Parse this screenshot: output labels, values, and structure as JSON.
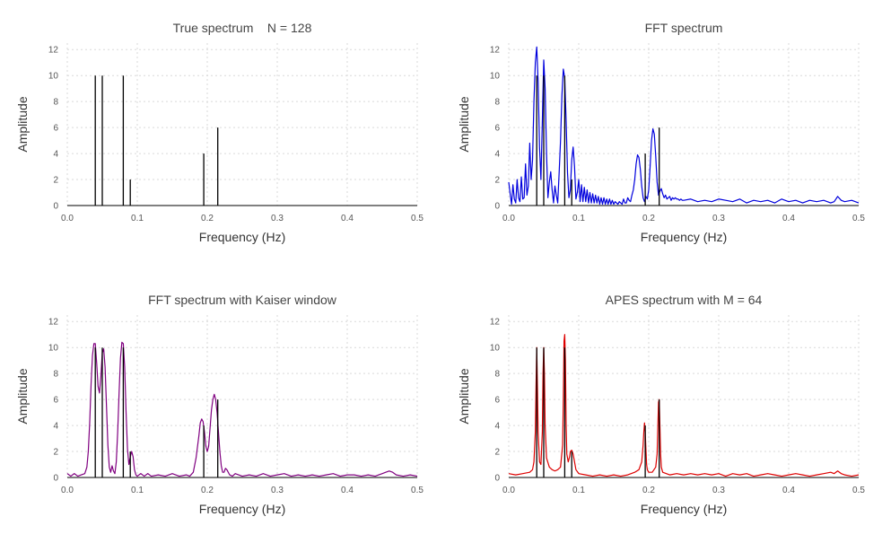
{
  "chart_data": [
    {
      "type": "line",
      "title": "True spectrum    N = 128",
      "xlabel": "Frequency (Hz)",
      "ylabel": "Amplitude",
      "xlim": [
        0,
        0.5
      ],
      "ylim": [
        0,
        12.5
      ],
      "xticks": [
        0.0,
        0.1,
        0.2,
        0.3,
        0.4,
        0.5
      ],
      "xtick_labels": [
        "0.0",
        "0.1",
        "0.2",
        "0.3",
        "0.4",
        "0.5"
      ],
      "yticks": [
        0,
        2,
        4,
        6,
        8,
        10,
        12
      ],
      "ytick_labels": [
        "0",
        "2",
        "4",
        "6",
        "8",
        "10",
        "12"
      ],
      "grid": true,
      "true_lines": {
        "color": "#000000",
        "x": [
          0.04,
          0.05,
          0.08,
          0.09,
          0.195,
          0.215
        ],
        "y": [
          10,
          10,
          10,
          2,
          4,
          6
        ]
      },
      "series": []
    },
    {
      "type": "line",
      "title": "FFT spectrum",
      "xlabel": "Frequency (Hz)",
      "ylabel": "Amplitude",
      "xlim": [
        0,
        0.5
      ],
      "ylim": [
        0,
        12.5
      ],
      "xticks": [
        0.0,
        0.1,
        0.2,
        0.3,
        0.4,
        0.5
      ],
      "xtick_labels": [
        "0.0",
        "0.1",
        "0.2",
        "0.3",
        "0.4",
        "0.5"
      ],
      "yticks": [
        0,
        2,
        4,
        6,
        8,
        10,
        12
      ],
      "ytick_labels": [
        "0",
        "2",
        "4",
        "6",
        "8",
        "10",
        "12"
      ],
      "grid": true,
      "true_lines": {
        "color": "#000000",
        "x": [
          0.04,
          0.05,
          0.08,
          0.09,
          0.195,
          0.215
        ],
        "y": [
          10,
          10,
          10,
          2,
          4,
          6
        ]
      },
      "series": [
        {
          "color": "#0000dd",
          "x": [
            0.0,
            0.002,
            0.004,
            0.006,
            0.008,
            0.01,
            0.012,
            0.014,
            0.016,
            0.018,
            0.02,
            0.022,
            0.024,
            0.026,
            0.028,
            0.03,
            0.032,
            0.034,
            0.036,
            0.038,
            0.04,
            0.042,
            0.044,
            0.046,
            0.048,
            0.05,
            0.052,
            0.054,
            0.056,
            0.058,
            0.06,
            0.062,
            0.064,
            0.066,
            0.068,
            0.07,
            0.072,
            0.074,
            0.076,
            0.078,
            0.08,
            0.082,
            0.084,
            0.086,
            0.088,
            0.09,
            0.092,
            0.094,
            0.096,
            0.098,
            0.1,
            0.102,
            0.104,
            0.106,
            0.108,
            0.11,
            0.112,
            0.114,
            0.116,
            0.118,
            0.12,
            0.122,
            0.124,
            0.126,
            0.128,
            0.13,
            0.132,
            0.134,
            0.136,
            0.138,
            0.14,
            0.142,
            0.144,
            0.146,
            0.148,
            0.15,
            0.152,
            0.154,
            0.156,
            0.158,
            0.16,
            0.162,
            0.164,
            0.166,
            0.168,
            0.17,
            0.172,
            0.174,
            0.176,
            0.178,
            0.18,
            0.182,
            0.184,
            0.186,
            0.188,
            0.19,
            0.192,
            0.194,
            0.196,
            0.198,
            0.2,
            0.202,
            0.204,
            0.206,
            0.208,
            0.21,
            0.212,
            0.214,
            0.216,
            0.218,
            0.22,
            0.222,
            0.224,
            0.226,
            0.228,
            0.23,
            0.232,
            0.234,
            0.236,
            0.238,
            0.24,
            0.242,
            0.244,
            0.246,
            0.248,
            0.25,
            0.26,
            0.27,
            0.28,
            0.29,
            0.3,
            0.31,
            0.32,
            0.33,
            0.34,
            0.35,
            0.36,
            0.37,
            0.38,
            0.39,
            0.4,
            0.41,
            0.42,
            0.43,
            0.44,
            0.45,
            0.46,
            0.465,
            0.47,
            0.475,
            0.48,
            0.49,
            0.5
          ],
          "y": [
            1.8,
            0.9,
            0.1,
            1.6,
            0.5,
            0.2,
            2.0,
            0.6,
            0.3,
            2.2,
            0.5,
            0.6,
            3.2,
            0.8,
            1.5,
            4.8,
            2.0,
            3.5,
            8.0,
            11.0,
            12.2,
            9.5,
            4.5,
            2.0,
            6.5,
            11.2,
            9.0,
            4.0,
            0.6,
            1.8,
            2.6,
            1.2,
            0.2,
            1.5,
            0.8,
            0.2,
            2.5,
            5.0,
            8.5,
            10.5,
            9.8,
            6.5,
            2.5,
            0.6,
            1.2,
            3.5,
            4.5,
            3.0,
            0.5,
            1.0,
            2.0,
            0.3,
            1.6,
            0.3,
            1.4,
            0.3,
            1.2,
            0.2,
            1.0,
            0.2,
            0.9,
            0.2,
            0.8,
            0.2,
            0.7,
            0.1,
            0.6,
            0.1,
            0.6,
            0.1,
            0.5,
            0.1,
            0.5,
            0.1,
            0.4,
            0.1,
            0.3,
            0.2,
            0.1,
            0.3,
            0.2,
            0.1,
            0.5,
            0.2,
            0.2,
            0.6,
            0.4,
            0.3,
            0.8,
            1.2,
            2.0,
            3.2,
            3.9,
            3.7,
            2.8,
            1.5,
            0.6,
            0.3,
            0.7,
            0.5,
            1.2,
            3.0,
            5.0,
            5.9,
            5.5,
            3.8,
            1.8,
            0.8,
            1.1,
            1.3,
            0.9,
            0.6,
            0.8,
            0.5,
            0.6,
            0.7,
            0.4,
            0.6,
            0.5,
            0.6,
            0.5,
            0.5,
            0.4,
            0.5,
            0.4,
            0.4,
            0.5,
            0.3,
            0.4,
            0.3,
            0.5,
            0.4,
            0.3,
            0.5,
            0.2,
            0.4,
            0.3,
            0.4,
            0.2,
            0.5,
            0.3,
            0.4,
            0.2,
            0.4,
            0.3,
            0.4,
            0.2,
            0.3,
            0.7,
            0.4,
            0.3,
            0.4,
            0.2
          ]
        }
      ]
    },
    {
      "type": "line",
      "title": "FFT spectrum with Kaiser window",
      "xlabel": "Frequency (Hz)",
      "ylabel": "Amplitude",
      "xlim": [
        0,
        0.5
      ],
      "ylim": [
        0,
        12.5
      ],
      "xticks": [
        0.0,
        0.1,
        0.2,
        0.3,
        0.4,
        0.5
      ],
      "xtick_labels": [
        "0.0",
        "0.1",
        "0.2",
        "0.3",
        "0.4",
        "0.5"
      ],
      "yticks": [
        0,
        2,
        4,
        6,
        8,
        10,
        12
      ],
      "ytick_labels": [
        "0",
        "2",
        "4",
        "6",
        "8",
        "10",
        "12"
      ],
      "grid": true,
      "true_lines": {
        "color": "#000000",
        "x": [
          0.04,
          0.05,
          0.08,
          0.09,
          0.195,
          0.215
        ],
        "y": [
          10,
          10,
          10,
          2,
          4,
          6
        ]
      },
      "series": [
        {
          "color": "#800080",
          "x": [
            0.0,
            0.005,
            0.01,
            0.015,
            0.02,
            0.025,
            0.028,
            0.03,
            0.032,
            0.034,
            0.036,
            0.038,
            0.04,
            0.042,
            0.044,
            0.046,
            0.048,
            0.05,
            0.052,
            0.054,
            0.056,
            0.058,
            0.06,
            0.062,
            0.064,
            0.066,
            0.068,
            0.07,
            0.072,
            0.074,
            0.076,
            0.078,
            0.08,
            0.082,
            0.084,
            0.086,
            0.088,
            0.09,
            0.092,
            0.094,
            0.096,
            0.098,
            0.1,
            0.105,
            0.11,
            0.115,
            0.12,
            0.13,
            0.14,
            0.15,
            0.16,
            0.17,
            0.175,
            0.18,
            0.184,
            0.188,
            0.19,
            0.192,
            0.194,
            0.196,
            0.198,
            0.2,
            0.202,
            0.204,
            0.206,
            0.208,
            0.21,
            0.212,
            0.214,
            0.216,
            0.218,
            0.22,
            0.222,
            0.224,
            0.226,
            0.228,
            0.232,
            0.236,
            0.24,
            0.25,
            0.26,
            0.27,
            0.28,
            0.29,
            0.3,
            0.31,
            0.32,
            0.33,
            0.34,
            0.35,
            0.36,
            0.37,
            0.38,
            0.39,
            0.4,
            0.41,
            0.42,
            0.43,
            0.44,
            0.445,
            0.45,
            0.455,
            0.46,
            0.465,
            0.47,
            0.48,
            0.49,
            0.5
          ],
          "y": [
            0.3,
            0.1,
            0.3,
            0.1,
            0.2,
            0.3,
            0.8,
            2.0,
            4.2,
            7.2,
            9.4,
            10.3,
            10.3,
            8.8,
            7.0,
            6.5,
            7.8,
            9.6,
            9.9,
            8.5,
            5.5,
            2.5,
            0.8,
            0.4,
            0.9,
            0.5,
            0.3,
            1.2,
            3.5,
            6.5,
            9.2,
            10.4,
            10.3,
            8.5,
            5.0,
            2.2,
            1.0,
            1.6,
            2.0,
            1.6,
            0.6,
            0.2,
            0.1,
            0.3,
            0.1,
            0.3,
            0.1,
            0.2,
            0.1,
            0.3,
            0.1,
            0.2,
            0.1,
            0.4,
            1.5,
            3.2,
            4.2,
            4.5,
            4.3,
            3.5,
            2.4,
            2.0,
            2.4,
            3.8,
            5.2,
            6.0,
            6.4,
            6.0,
            5.0,
            3.5,
            2.0,
            0.9,
            0.4,
            0.4,
            0.7,
            0.6,
            0.2,
            0.1,
            0.3,
            0.1,
            0.2,
            0.1,
            0.3,
            0.1,
            0.2,
            0.3,
            0.1,
            0.2,
            0.1,
            0.2,
            0.1,
            0.2,
            0.3,
            0.1,
            0.2,
            0.2,
            0.1,
            0.2,
            0.1,
            0.2,
            0.3,
            0.4,
            0.5,
            0.4,
            0.2,
            0.1,
            0.2,
            0.1
          ]
        }
      ]
    },
    {
      "type": "line",
      "title": "APES spectrum with M = 64",
      "xlabel": "Frequency (Hz)",
      "ylabel": "Amplitude",
      "xlim": [
        0,
        0.5
      ],
      "ylim": [
        0,
        12.5
      ],
      "xticks": [
        0.0,
        0.1,
        0.2,
        0.3,
        0.4,
        0.5
      ],
      "xtick_labels": [
        "0.0",
        "0.1",
        "0.2",
        "0.3",
        "0.4",
        "0.5"
      ],
      "yticks": [
        0,
        2,
        4,
        6,
        8,
        10,
        12
      ],
      "ytick_labels": [
        "0",
        "2",
        "4",
        "6",
        "8",
        "10",
        "12"
      ],
      "grid": true,
      "true_lines": {
        "color": "#000000",
        "x": [
          0.04,
          0.05,
          0.08,
          0.09,
          0.195,
          0.215
        ],
        "y": [
          10,
          10,
          10,
          2,
          4,
          6
        ]
      },
      "series": [
        {
          "color": "#dd0000",
          "x": [
            0.0,
            0.01,
            0.02,
            0.03,
            0.034,
            0.036,
            0.038,
            0.039,
            0.04,
            0.041,
            0.042,
            0.044,
            0.046,
            0.048,
            0.049,
            0.05,
            0.051,
            0.052,
            0.054,
            0.058,
            0.062,
            0.066,
            0.07,
            0.074,
            0.077,
            0.078,
            0.079,
            0.08,
            0.081,
            0.082,
            0.083,
            0.085,
            0.087,
            0.088,
            0.09,
            0.092,
            0.094,
            0.096,
            0.1,
            0.11,
            0.12,
            0.13,
            0.14,
            0.15,
            0.16,
            0.17,
            0.18,
            0.186,
            0.19,
            0.192,
            0.193,
            0.194,
            0.195,
            0.196,
            0.197,
            0.198,
            0.2,
            0.205,
            0.21,
            0.212,
            0.213,
            0.214,
            0.215,
            0.216,
            0.217,
            0.218,
            0.22,
            0.23,
            0.24,
            0.25,
            0.26,
            0.27,
            0.28,
            0.29,
            0.3,
            0.31,
            0.32,
            0.33,
            0.34,
            0.35,
            0.36,
            0.37,
            0.38,
            0.39,
            0.4,
            0.41,
            0.42,
            0.43,
            0.44,
            0.45,
            0.46,
            0.465,
            0.47,
            0.475,
            0.48,
            0.49,
            0.5
          ],
          "y": [
            0.3,
            0.2,
            0.3,
            0.4,
            0.6,
            1.2,
            3.5,
            7.0,
            10.0,
            7.0,
            3.5,
            1.2,
            1.0,
            3.5,
            8.0,
            10.0,
            8.0,
            4.0,
            1.5,
            0.8,
            0.6,
            0.5,
            0.6,
            0.8,
            2.5,
            6.0,
            10.5,
            11.0,
            9.0,
            4.0,
            1.8,
            1.2,
            1.6,
            2.0,
            2.1,
            1.8,
            1.2,
            0.6,
            0.3,
            0.2,
            0.1,
            0.2,
            0.1,
            0.2,
            0.1,
            0.2,
            0.4,
            0.6,
            1.2,
            2.5,
            3.5,
            4.2,
            3.5,
            2.2,
            1.0,
            0.6,
            0.4,
            0.4,
            0.8,
            1.8,
            3.8,
            5.8,
            6.0,
            4.0,
            1.8,
            0.8,
            0.4,
            0.2,
            0.3,
            0.2,
            0.3,
            0.2,
            0.3,
            0.2,
            0.3,
            0.1,
            0.3,
            0.2,
            0.3,
            0.1,
            0.2,
            0.3,
            0.2,
            0.1,
            0.2,
            0.3,
            0.2,
            0.1,
            0.2,
            0.3,
            0.4,
            0.3,
            0.5,
            0.3,
            0.2,
            0.1,
            0.2
          ]
        }
      ]
    }
  ]
}
